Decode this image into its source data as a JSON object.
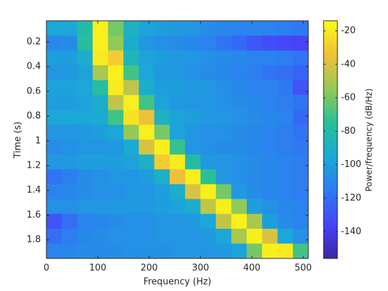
{
  "chart_data": {
    "type": "heatmap",
    "x_label": "Frequency (Hz)",
    "y_label": "Time (s)",
    "colorbar_label": "Power/frequency (dB/Hz)",
    "x": [
      15,
      45,
      75,
      105,
      135,
      165,
      195,
      225,
      255,
      285,
      315,
      345,
      375,
      405,
      435,
      465,
      495
    ],
    "y": [
      0.09,
      0.21,
      0.33,
      0.45,
      0.57,
      0.69,
      0.81,
      0.93,
      1.05,
      1.17,
      1.29,
      1.41,
      1.53,
      1.65,
      1.77,
      1.89
    ],
    "z": [
      [
        -95,
        -96,
        -80,
        -18,
        -60,
        -88,
        -98,
        -100,
        -102,
        -104,
        -108,
        -110,
        -112,
        -110,
        -112,
        -114,
        -116
      ],
      [
        -110,
        -108,
        -78,
        -18,
        -55,
        -92,
        -104,
        -106,
        -108,
        -110,
        -112,
        -118,
        -122,
        -128,
        -132,
        -134,
        -136
      ],
      [
        -100,
        -100,
        -92,
        -20,
        -30,
        -86,
        -98,
        -100,
        -102,
        -104,
        -106,
        -108,
        -110,
        -112,
        -112,
        -114,
        -118
      ],
      [
        -104,
        -102,
        -98,
        -50,
        -18,
        -70,
        -96,
        -102,
        -104,
        -106,
        -108,
        -110,
        -112,
        -114,
        -118,
        -120,
        -124
      ],
      [
        -98,
        -98,
        -96,
        -78,
        -20,
        -45,
        -92,
        -100,
        -100,
        -102,
        -104,
        -106,
        -110,
        -112,
        -112,
        -116,
        -130
      ],
      [
        -100,
        -100,
        -98,
        -92,
        -45,
        -18,
        -70,
        -98,
        -102,
        -104,
        -104,
        -106,
        -108,
        -110,
        -112,
        -114,
        -118
      ],
      [
        -96,
        -96,
        -96,
        -94,
        -70,
        -22,
        -35,
        -88,
        -98,
        -100,
        -102,
        -104,
        -106,
        -108,
        -110,
        -112,
        -122
      ],
      [
        -104,
        -104,
        -102,
        -100,
        -96,
        -55,
        -18,
        -60,
        -98,
        -104,
        -106,
        -106,
        -108,
        -110,
        -112,
        -114,
        -118
      ],
      [
        -108,
        -106,
        -104,
        -104,
        -102,
        -94,
        -40,
        -18,
        -72,
        -104,
        -106,
        -108,
        -108,
        -110,
        -112,
        -114,
        -116
      ],
      [
        -102,
        -102,
        -100,
        -100,
        -100,
        -98,
        -90,
        -30,
        -20,
        -80,
        -102,
        -104,
        -106,
        -108,
        -110,
        -112,
        -114
      ],
      [
        -118,
        -114,
        -108,
        -106,
        -104,
        -104,
        -100,
        -90,
        -35,
        -18,
        -75,
        -104,
        -106,
        -108,
        -110,
        -112,
        -114
      ],
      [
        -112,
        -110,
        -108,
        -106,
        -106,
        -104,
        -104,
        -100,
        -92,
        -40,
        -18,
        -60,
        -102,
        -108,
        -110,
        -112,
        -114
      ],
      [
        -106,
        -106,
        -104,
        -104,
        -102,
        -102,
        -102,
        -100,
        -98,
        -92,
        -45,
        -18,
        -55,
        -100,
        -106,
        -110,
        -112
      ],
      [
        -130,
        -120,
        -112,
        -110,
        -108,
        -106,
        -106,
        -104,
        -104,
        -102,
        -96,
        -45,
        -18,
        -50,
        -100,
        -108,
        -112
      ],
      [
        -120,
        -114,
        -110,
        -108,
        -106,
        -106,
        -106,
        -104,
        -104,
        -104,
        -102,
        -96,
        -50,
        -18,
        -40,
        -96,
        -106
      ],
      [
        -112,
        -110,
        -108,
        -108,
        -108,
        -106,
        -106,
        -106,
        -104,
        -104,
        -104,
        -102,
        -98,
        -60,
        -18,
        -20,
        -70
      ]
    ],
    "xlim": [
      0,
      510
    ],
    "ylim": [
      0.03,
      1.95
    ],
    "y_reversed": true,
    "xticks": [
      0,
      100,
      200,
      300,
      400,
      500
    ],
    "yticks": [
      0.2,
      0.4,
      0.6,
      0.8,
      1,
      1.2,
      1.4,
      1.6,
      1.8
    ],
    "clim": [
      -156,
      -14
    ],
    "cticks": [
      -140,
      -120,
      -100,
      -80,
      -60,
      -40,
      -20
    ],
    "colormap": [
      "#3e26a8",
      "#4743f8",
      "#2d7bf3",
      "#1aa9d6",
      "#28c196",
      "#93ca55",
      "#f2c039",
      "#f9fb15"
    ]
  }
}
